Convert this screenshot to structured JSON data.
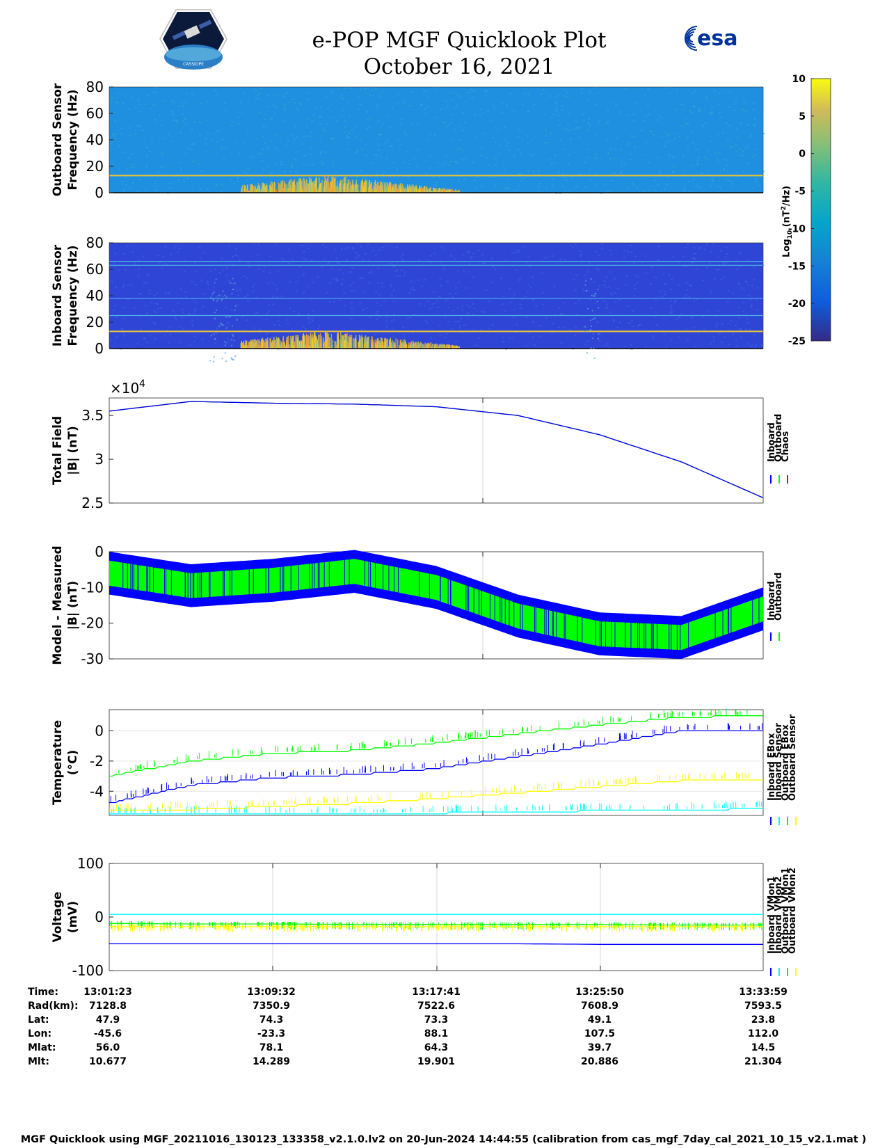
{
  "header": {
    "title_line1": "e-POP MGF Quicklook Plot",
    "title_line2": "October 16, 2021",
    "left_logo": "cassiope-satellite-logo",
    "right_logo": "esa-logo",
    "right_logo_text": "esa",
    "left_logo_text": "CASSIOPE"
  },
  "colorbar": {
    "label": "Log10 (nT2/Hz)",
    "label_main": "Log",
    "label_sub": "10",
    "label_rest": " (nT",
    "label_sup": "2",
    "label_end": "/Hz)",
    "ticks": [
      "10",
      "5",
      "0",
      "-5",
      "-10",
      "-15",
      "-20",
      "-25"
    ],
    "range": [
      -25,
      10
    ],
    "colormap": "parula"
  },
  "chart_data": [
    {
      "type": "heatmap",
      "name": "outboard-spectrogram",
      "ylabel": "Outboard Sensor Frequency (Hz)",
      "ylabel_line1": "Outboard Sensor",
      "ylabel_line2": "Frequency (Hz)",
      "ylim": [
        0,
        80
      ],
      "yticks": [
        "80",
        "60",
        "40",
        "20",
        "0"
      ],
      "background_level": -13,
      "lines_hz": [
        13
      ],
      "burst_region": "13:05 to 13:15, 0-12 Hz, peak ~5"
    },
    {
      "type": "heatmap",
      "name": "inboard-spectrogram",
      "ylabel": "Inboard Sensor Frequency (Hz)",
      "ylabel_line1": "Inboard Sensor",
      "ylabel_line2": "Frequency (Hz)",
      "ylim": [
        0,
        80
      ],
      "yticks": [
        "80",
        "60",
        "40",
        "20",
        "0"
      ],
      "background_level": -20,
      "lines_hz": [
        13,
        25,
        38,
        63,
        66
      ],
      "burst_region": "13:05 to 13:15, 0-12 Hz, peak ~5"
    },
    {
      "type": "line",
      "name": "total-field",
      "ylabel_line1": "Total Field",
      "ylabel_line2": "|B| (nT)",
      "exponent": "×10",
      "exponent_power": "4",
      "ylim": [
        2.5,
        3.7
      ],
      "yticks": [
        "3.5",
        "3",
        "2.5"
      ],
      "x": [
        "13:01:23",
        "13:05:30",
        "13:09:32",
        "13:13:40",
        "13:17:41",
        "13:21:45",
        "13:25:50",
        "13:29:55",
        "13:33:59"
      ],
      "series": [
        {
          "name": "Inboard",
          "color": "#0000ff",
          "values": [
            3.55,
            3.66,
            3.64,
            3.63,
            3.6,
            3.5,
            3.28,
            2.97,
            2.56
          ]
        },
        {
          "name": "Outboard",
          "color": "#00ff00",
          "values": [
            3.55,
            3.66,
            3.64,
            3.63,
            3.6,
            3.5,
            3.28,
            2.97,
            2.56
          ]
        },
        {
          "name": "Chaos",
          "color": "#ff0000",
          "values": [
            3.55,
            3.66,
            3.64,
            3.63,
            3.6,
            3.5,
            3.28,
            2.97,
            2.56
          ]
        }
      ],
      "legend": [
        "Inboard",
        "Outboard",
        "Chaos"
      ]
    },
    {
      "type": "area",
      "name": "model-measured",
      "ylabel_line1": "Model - Measured",
      "ylabel_line2": "|B| (nT)",
      "ylim": [
        -30,
        0
      ],
      "yticks": [
        "0",
        "-10",
        "-20",
        "-30"
      ],
      "x": [
        "13:01:23",
        "13:05:30",
        "13:09:32",
        "13:13:40",
        "13:17:41",
        "13:21:45",
        "13:25:50",
        "13:29:55",
        "13:33:59"
      ],
      "series": [
        {
          "name": "Inboard",
          "color": "#0000ff",
          "center": [
            -6,
            -9.5,
            -8,
            -5.5,
            -10,
            -18,
            -23,
            -24,
            -16
          ],
          "halfwidth": 6
        },
        {
          "name": "Outboard",
          "color": "#00ff00",
          "center": [
            -6,
            -9.5,
            -8,
            -5.5,
            -10,
            -18,
            -23,
            -24,
            -16
          ],
          "halfwidth": 3.5
        }
      ],
      "legend": [
        "Inboard",
        "Outboard"
      ]
    },
    {
      "type": "line",
      "name": "temperature",
      "ylabel_line1": "Temperature",
      "ylabel_line2": "(°C)",
      "ylim": [
        -5.6,
        1.4
      ],
      "yticks": [
        "0",
        "-2",
        "-4"
      ],
      "x": [
        "13:01:23",
        "13:05:30",
        "13:09:32",
        "13:13:40",
        "13:17:41",
        "13:21:45",
        "13:25:50",
        "13:29:55",
        "13:33:59"
      ],
      "series": [
        {
          "name": "Inboard EBox",
          "color": "#0000ff",
          "values": [
            -4.8,
            -3.6,
            -3.1,
            -2.9,
            -2.5,
            -1.7,
            -0.9,
            0.0,
            0.0
          ]
        },
        {
          "name": "Inboard Sensor",
          "color": "#00ffff",
          "values": [
            -5.5,
            -5.5,
            -5.5,
            -5.5,
            -5.45,
            -5.35,
            -5.3,
            -5.3,
            -5.1
          ]
        },
        {
          "name": "Outboard EBox",
          "color": "#00ff00",
          "values": [
            -3.0,
            -2.0,
            -1.5,
            -1.3,
            -0.8,
            -0.2,
            0.4,
            0.9,
            1.0
          ]
        },
        {
          "name": "Outboard Sensor",
          "color": "#ffff00",
          "values": [
            -5.3,
            -5.2,
            -5.0,
            -4.8,
            -4.5,
            -4.1,
            -3.7,
            -3.3,
            -3.2
          ]
        }
      ],
      "legend": [
        "Inboard EBox",
        "Inboard Sensor",
        "Outboard EBox",
        "Outboard Sensor"
      ]
    },
    {
      "type": "line",
      "name": "voltage",
      "ylabel_line1": "Voltage",
      "ylabel_line2": "(mV)",
      "ylim": [
        -100,
        100
      ],
      "yticks": [
        "100",
        "0",
        "-100"
      ],
      "x": [
        "13:01:23",
        "13:05:30",
        "13:09:32",
        "13:13:40",
        "13:17:41",
        "13:21:45",
        "13:25:50",
        "13:29:55",
        "13:33:59"
      ],
      "series": [
        {
          "name": "Inboard VMon1",
          "color": "#0000ff",
          "values": [
            -50,
            -50,
            -50,
            -50,
            -50,
            -50,
            -51,
            -51,
            -51
          ]
        },
        {
          "name": "Inboard VMon2",
          "color": "#00ffff",
          "values": [
            5,
            5,
            5,
            5,
            5,
            5,
            5,
            5,
            5
          ]
        },
        {
          "name": "Outboard VMon1",
          "color": "#00ff00",
          "values": [
            -12,
            -13,
            -13,
            -14,
            -14,
            -14,
            -14,
            -15,
            -15
          ]
        },
        {
          "name": "Outboard VMon2",
          "color": "#ffff00",
          "values": [
            -18,
            -18,
            -18,
            -18,
            -18,
            -18,
            -18,
            -18,
            -18
          ]
        }
      ],
      "legend": [
        "Inboard VMon1",
        "Inboard VMon2",
        "Outboard VMon1",
        "Outboard VMon2"
      ]
    }
  ],
  "info_table": {
    "labels": [
      "Time:",
      "Rad(km):",
      "Lat:",
      "Lon:",
      "Mlat:",
      "Mlt:"
    ],
    "columns": [
      [
        "13:01:23",
        "7128.8",
        "47.9",
        "-45.6",
        "56.0",
        "10.677"
      ],
      [
        "13:09:32",
        "7350.9",
        "74.3",
        "-23.3",
        "78.1",
        "14.289"
      ],
      [
        "13:17:41",
        "7522.6",
        "73.3",
        "88.1",
        "64.3",
        "19.901"
      ],
      [
        "13:25:50",
        "7608.9",
        "49.1",
        "107.5",
        "39.7",
        "20.886"
      ],
      [
        "13:33:59",
        "7593.5",
        "23.8",
        "112.0",
        "14.5",
        "21.304"
      ]
    ]
  },
  "footer": {
    "text": "MGF Quicklook using MGF_20211016_130123_133358_v2.1.0.lv2 on 20-Jun-2024 14:44:55 (calibration from cas_mgf_7day_cal_2021_10_15_v2.1.mat )"
  }
}
